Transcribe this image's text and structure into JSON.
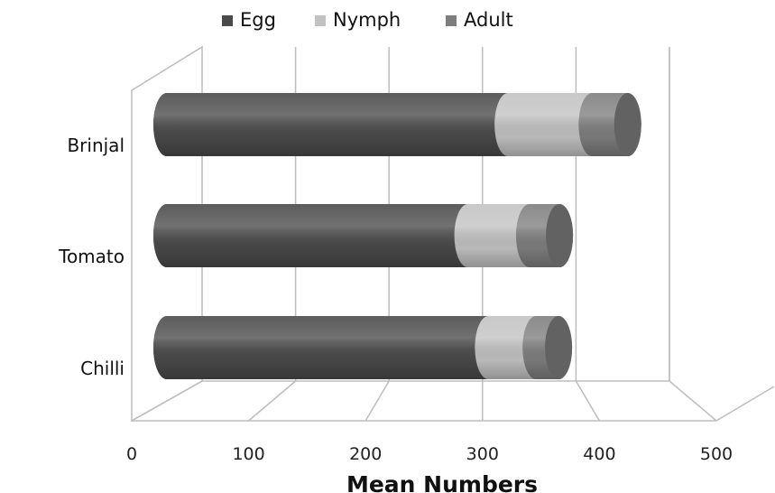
{
  "chart_data": {
    "type": "bar",
    "orientation": "horizontal",
    "stacked": true,
    "style": "3d-cylinder",
    "categories": [
      "Brinjal",
      "Tomato",
      "Chilli"
    ],
    "series": [
      {
        "name": "Egg",
        "color": "#4a4a4a",
        "values": [
          365,
          322,
          344
        ]
      },
      {
        "name": "Nymph",
        "color": "#c2c2c2",
        "values": [
          90,
          66,
          51
        ]
      },
      {
        "name": "Adult",
        "color": "#7e7e7e",
        "values": [
          38,
          32,
          24
        ]
      }
    ],
    "xlabel": "Mean Numbers",
    "ylabel": "",
    "xlim": [
      0,
      500
    ],
    "xticks": [
      "0",
      "100",
      "200",
      "300",
      "400",
      "500"
    ],
    "grid": true,
    "legend": "top"
  }
}
